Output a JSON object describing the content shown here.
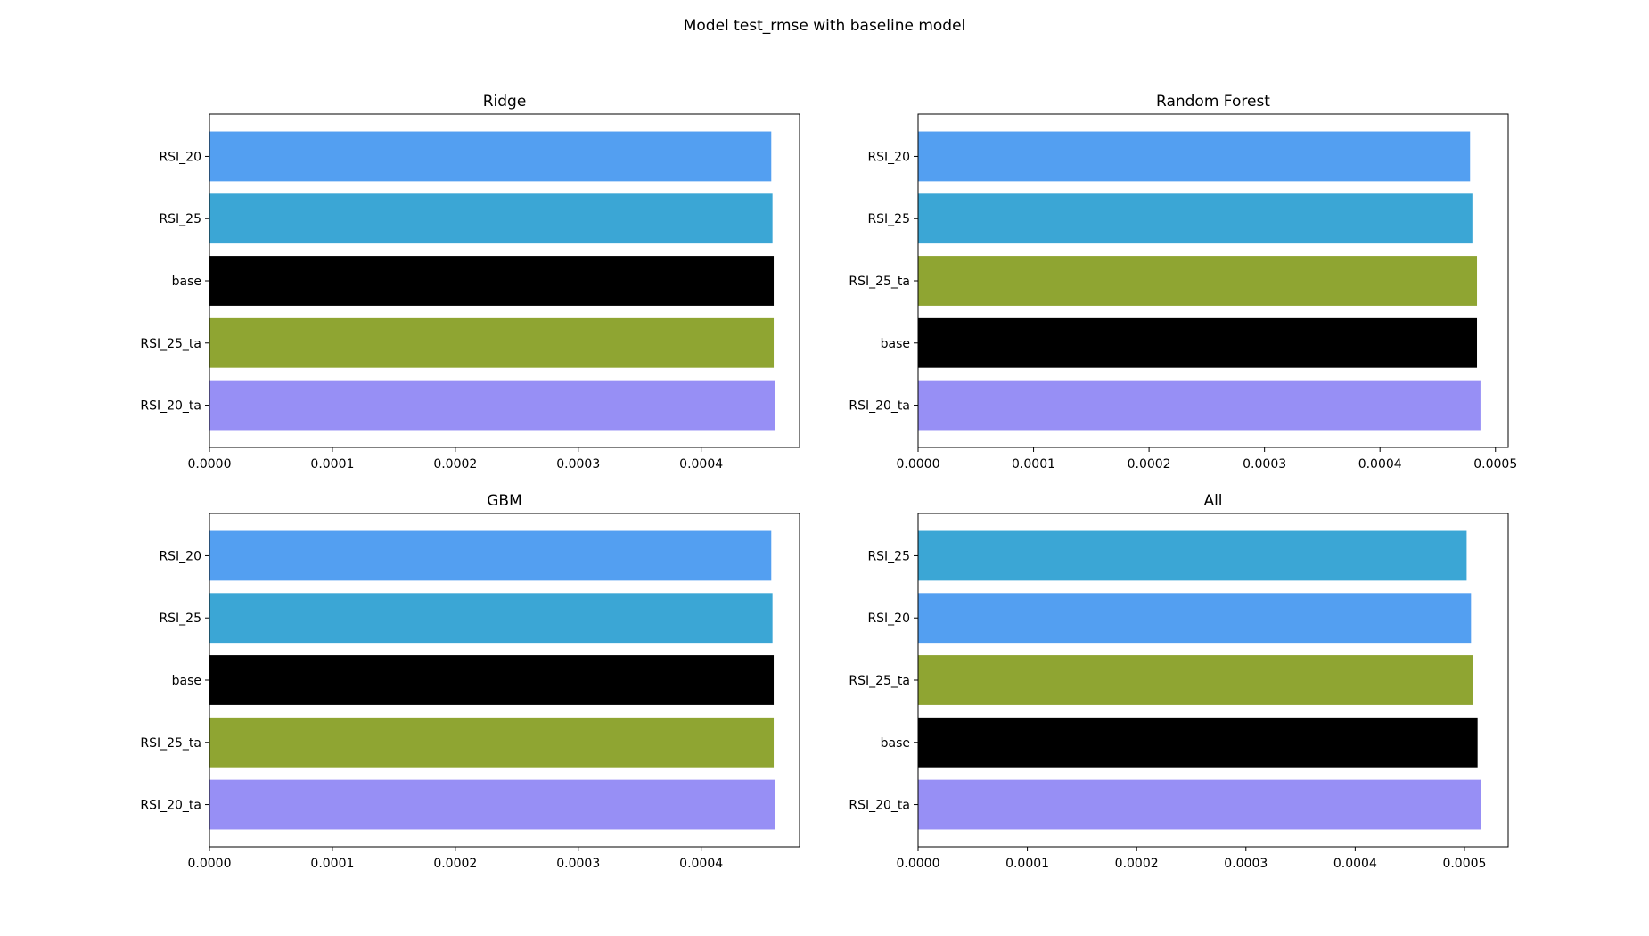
{
  "figure_title": "Model test_rmse with baseline model",
  "chart_data": [
    {
      "type": "bar",
      "orientation": "horizontal",
      "title": "Ridge",
      "xlabel": "",
      "ylabel": "",
      "xlim": [
        0,
        0.00048
      ],
      "xticks": [
        "0.0000",
        "0.0001",
        "0.0002",
        "0.0003",
        "0.0004"
      ],
      "categories": [
        "RSI_20",
        "RSI_25",
        "base",
        "RSI_25_ta",
        "RSI_20_ta"
      ],
      "values": [
        0.000457,
        0.000458,
        0.000459,
        0.000459,
        0.00046
      ],
      "colors": [
        "#539ff1",
        "#3ba6d5",
        "#000000",
        "#8fa532",
        "#978ff5"
      ],
      "grid": false
    },
    {
      "type": "bar",
      "orientation": "horizontal",
      "title": "Random Forest",
      "xlabel": "",
      "ylabel": "",
      "xlim": [
        0,
        0.000511
      ],
      "xticks": [
        "0.0000",
        "0.0001",
        "0.0002",
        "0.0003",
        "0.0004",
        "0.0005"
      ],
      "categories": [
        "RSI_20",
        "RSI_25",
        "RSI_25_ta",
        "base",
        "RSI_20_ta"
      ],
      "values": [
        0.000478,
        0.00048,
        0.000484,
        0.000484,
        0.000487
      ],
      "colors": [
        "#539ff1",
        "#3ba6d5",
        "#8fa532",
        "#000000",
        "#978ff5"
      ],
      "grid": false
    },
    {
      "type": "bar",
      "orientation": "horizontal",
      "title": "GBM",
      "xlabel": "",
      "ylabel": "",
      "xlim": [
        0,
        0.00048
      ],
      "xticks": [
        "0.0000",
        "0.0001",
        "0.0002",
        "0.0003",
        "0.0004"
      ],
      "categories": [
        "RSI_20",
        "RSI_25",
        "base",
        "RSI_25_ta",
        "RSI_20_ta"
      ],
      "values": [
        0.000457,
        0.000458,
        0.000459,
        0.000459,
        0.00046
      ],
      "colors": [
        "#539ff1",
        "#3ba6d5",
        "#000000",
        "#8fa532",
        "#978ff5"
      ],
      "grid": false
    },
    {
      "type": "bar",
      "orientation": "horizontal",
      "title": "All",
      "xlabel": "",
      "ylabel": "",
      "xlim": [
        0,
        0.00054
      ],
      "xticks": [
        "0.0000",
        "0.0001",
        "0.0002",
        "0.0003",
        "0.0004",
        "0.0005"
      ],
      "categories": [
        "RSI_25",
        "RSI_20",
        "RSI_25_ta",
        "base",
        "RSI_20_ta"
      ],
      "values": [
        0.000502,
        0.000506,
        0.000508,
        0.000512,
        0.000515
      ],
      "colors": [
        "#3ba6d5",
        "#539ff1",
        "#8fa532",
        "#000000",
        "#978ff5"
      ],
      "grid": false
    }
  ]
}
